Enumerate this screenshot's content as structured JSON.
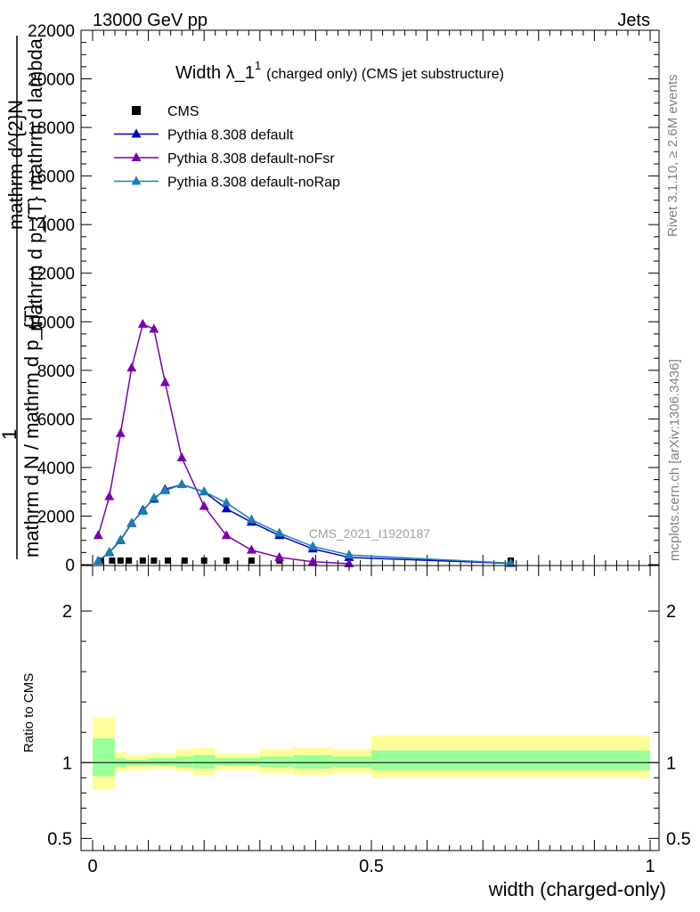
{
  "header": {
    "left": "13000 GeV pp",
    "right": "Jets"
  },
  "side": {
    "rivet": "Rivet 3.1.10, ≥ 2.6M events",
    "site": "mcplots.cern.ch [arXiv:1306.3436]"
  },
  "chart_data": [
    {
      "type": "line",
      "title_main": "Width λ_1",
      "title_sup": "1",
      "title_rest": "(charged only) (CMS jet substructure)",
      "ylabel": "1 / mathrm d N / mathrm d p_T mathrm d lambda / mathrm d^2 N",
      "ylabel_lines": [
        "mathrm d^{2}N",
        "mathrm d p_{T} mathrm d lambda",
        "1",
        "mathrm d N / mathrm d p_{T}"
      ],
      "watermark": "CMS_2021_I1920187",
      "xlim": [
        0,
        1
      ],
      "ylim": [
        0,
        22000
      ],
      "yticks": [
        0,
        2000,
        4000,
        6000,
        8000,
        10000,
        12000,
        14000,
        16000,
        18000,
        20000,
        22000
      ],
      "ytick_labels": [
        "0",
        "2000",
        "4000",
        "6000",
        "8000",
        "10000",
        "12000",
        "14000",
        "16000",
        "18000",
        "20000",
        "22000"
      ],
      "legend": "top-left",
      "series": [
        {
          "name": "CMS",
          "color": "#000000",
          "marker": "square",
          "x": [
            0.015,
            0.035,
            0.05,
            0.065,
            0.09,
            0.11,
            0.135,
            0.165,
            0.2,
            0.24,
            0.285,
            0.335
          ],
          "y": [
            40,
            40,
            40,
            40,
            40,
            40,
            40,
            40,
            40,
            40,
            40,
            40
          ]
        },
        {
          "name": "Pythia 8.308 default",
          "color": "#0000cc",
          "marker": "triangle",
          "x": [
            0.01,
            0.03,
            0.05,
            0.07,
            0.09,
            0.11,
            0.13,
            0.16,
            0.2,
            0.24,
            0.285,
            0.335,
            0.395,
            0.46,
            0.75
          ],
          "y": [
            150,
            500,
            1000,
            1700,
            2250,
            2700,
            3100,
            3300,
            3000,
            2300,
            1750,
            1200,
            650,
            300,
            50
          ]
        },
        {
          "name": "Pythia 8.308 default-noFsr",
          "color": "#7a00b0",
          "marker": "triangle",
          "x": [
            0.01,
            0.03,
            0.05,
            0.07,
            0.09,
            0.11,
            0.13,
            0.16,
            0.2,
            0.24,
            0.285,
            0.335,
            0.395,
            0.46
          ],
          "y": [
            1200,
            2800,
            5400,
            8100,
            9900,
            9700,
            7500,
            4400,
            2400,
            1200,
            600,
            300,
            120,
            40
          ]
        },
        {
          "name": "Pythia 8.308 default-noRap",
          "color": "#1a80b0",
          "marker": "triangle",
          "x": [
            0.01,
            0.03,
            0.05,
            0.07,
            0.09,
            0.11,
            0.13,
            0.16,
            0.2,
            0.24,
            0.285,
            0.335,
            0.395,
            0.46,
            0.75
          ],
          "y": [
            150,
            520,
            1020,
            1720,
            2200,
            2750,
            3050,
            3300,
            3000,
            2550,
            1850,
            1300,
            750,
            400,
            60
          ]
        }
      ]
    },
    {
      "type": "area",
      "ylabel": "Ratio to CMS",
      "xlabel": "width (charged-only)",
      "xlim": [
        0,
        1
      ],
      "xticks": [
        0,
        0.5,
        1
      ],
      "xtick_labels": [
        "0",
        "0.5",
        "1"
      ],
      "ylim": [
        0.42,
        2.3
      ],
      "yticks": [
        0.5,
        1,
        2
      ],
      "ytick_labels": [
        "0.5",
        "1",
        "2"
      ],
      "reference": 1,
      "bands": {
        "edges": [
          0,
          0.04,
          0.06,
          0.1,
          0.15,
          0.18,
          0.22,
          0.3,
          0.36,
          0.43,
          0.5,
          1.0
        ],
        "outer_lo": [
          0.82,
          0.94,
          0.95,
          0.96,
          0.94,
          0.92,
          0.95,
          0.93,
          0.92,
          0.93,
          0.9
        ],
        "outer_hi": [
          1.3,
          1.07,
          1.05,
          1.06,
          1.09,
          1.1,
          1.06,
          1.09,
          1.1,
          1.09,
          1.18
        ],
        "inner_lo": [
          0.91,
          0.97,
          0.98,
          0.98,
          0.97,
          0.96,
          0.98,
          0.97,
          0.96,
          0.97,
          0.95
        ],
        "inner_hi": [
          1.16,
          1.03,
          1.02,
          1.03,
          1.04,
          1.05,
          1.03,
          1.04,
          1.05,
          1.04,
          1.08
        ],
        "outer_color": "#ffff99",
        "inner_color": "#99ff99"
      }
    }
  ]
}
